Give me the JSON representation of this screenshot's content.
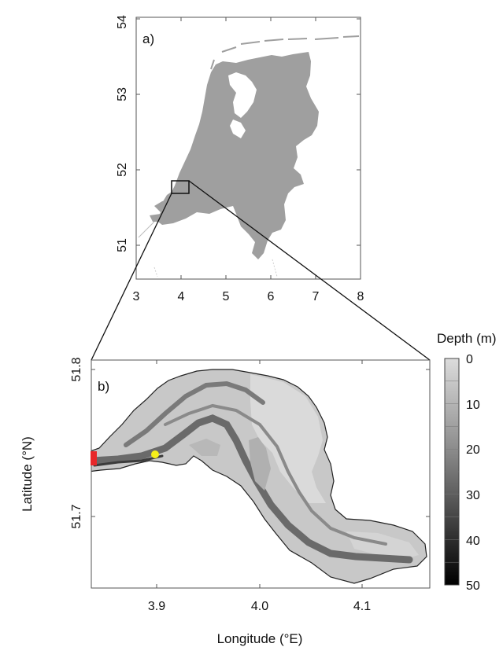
{
  "panel_a": {
    "label": "a)",
    "x_ticks": [
      "3",
      "4",
      "5",
      "6",
      "7",
      "8"
    ],
    "y_ticks": [
      "51",
      "52",
      "53",
      "54"
    ]
  },
  "panel_b": {
    "label": "b)",
    "x_ticks": [
      "3.9",
      "4.0",
      "4.1"
    ],
    "y_ticks": [
      "51.7",
      "51.8"
    ],
    "x_title": "Longitude (°E)",
    "y_title": "Latitude (°N)"
  },
  "colorbar": {
    "title": "Depth (m)",
    "ticks": [
      "0",
      "10",
      "20",
      "30",
      "40",
      "50"
    ]
  },
  "colors": {
    "land": "#9f9f9f",
    "marker_red": "#e8282a",
    "marker_yellow": "#f5ef1a"
  }
}
